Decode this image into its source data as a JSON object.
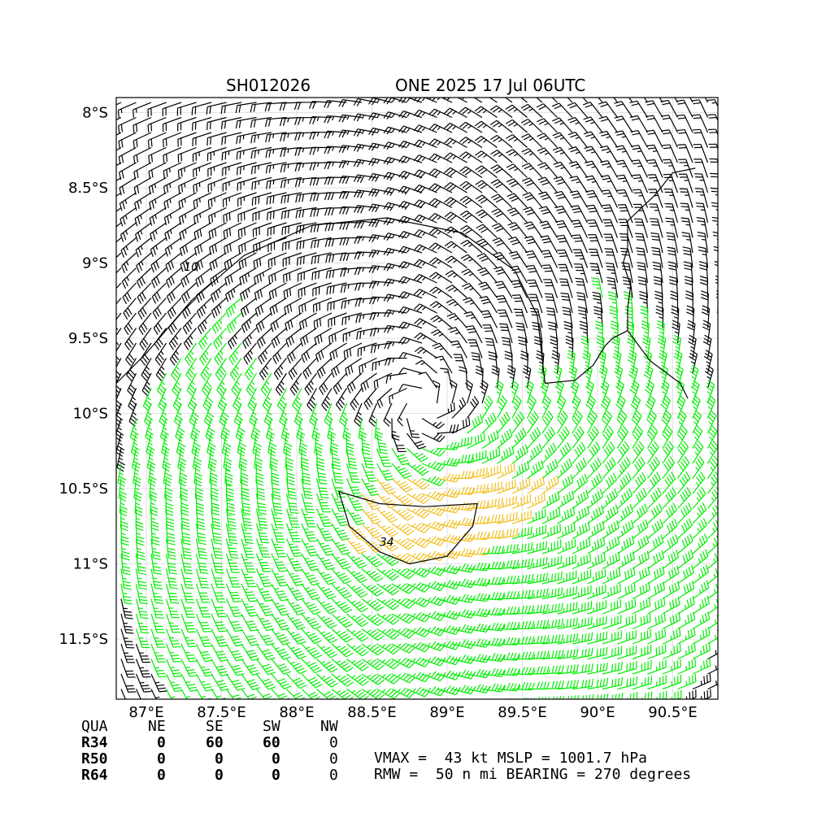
{
  "title": {
    "storm_id": "SH012026",
    "storm_info": "ONE 2025 17 Jul 06UTC"
  },
  "colors": {
    "barb_weak": "#000000",
    "barb_ts": "#00ee00",
    "barb_strong": "#f0c020",
    "coast": "#000000",
    "contour": "#000000"
  },
  "chart_data": {
    "type": "wind barb map",
    "center": {
      "lon": 88.85,
      "lat": -9.95
    },
    "lon_range": [
      86.8,
      90.8
    ],
    "lat_range": [
      -11.9,
      -7.9
    ],
    "x_ticks": [
      "87°E",
      "87.5°E",
      "88°E",
      "88.5°E",
      "89°E",
      "89.5°E",
      "90°E",
      "90.5°E"
    ],
    "x_tick_values": [
      87.0,
      87.5,
      88.0,
      88.5,
      89.0,
      89.5,
      90.0,
      90.5
    ],
    "y_ticks": [
      "8°S",
      "8.5°S",
      "9°S",
      "9.5°S",
      "10°S",
      "10.5°S",
      "11°S",
      "11.5°S"
    ],
    "y_tick_values": [
      -8.0,
      -8.5,
      -9.0,
      -9.5,
      -10.0,
      -10.5,
      -11.0,
      -11.5
    ],
    "grid": true,
    "contours": [
      {
        "label": "34",
        "level": 34
      },
      {
        "label": "10",
        "level": 10
      }
    ],
    "coastline": [
      [
        90.65,
        -8.37
      ],
      [
        90.5,
        -8.4
      ],
      [
        90.38,
        -8.55
      ],
      [
        90.2,
        -8.72
      ],
      [
        90.2,
        -8.9
      ],
      [
        90.17,
        -9.0
      ],
      [
        90.22,
        -9.15
      ],
      [
        90.2,
        -9.3
      ],
      [
        90.2,
        -9.45
      ],
      [
        90.35,
        -9.65
      ],
      [
        90.55,
        -9.8
      ],
      [
        90.6,
        -9.9
      ]
    ],
    "coastline2": [
      [
        89.65,
        -9.8
      ],
      [
        89.85,
        -9.78
      ],
      [
        89.97,
        -9.68
      ],
      [
        90.05,
        -9.55
      ],
      [
        90.1,
        -9.5
      ],
      [
        90.2,
        -9.45
      ]
    ],
    "rmw_nmi": 50,
    "vmax_kt": 43,
    "mslp_hpa": 1001.7
  },
  "table": {
    "header": [
      "QUA",
      "NE",
      "SE",
      "SW",
      "NW"
    ],
    "rows": [
      {
        "label": "R34",
        "values": [
          "0",
          "60",
          "60",
          "0"
        ]
      },
      {
        "label": "R50",
        "values": [
          "0",
          "0",
          "0",
          "0"
        ]
      },
      {
        "label": "R64",
        "values": [
          "0",
          "0",
          "0",
          "0"
        ]
      }
    ]
  },
  "info": {
    "line1": "VMAX =  43 kt MSLP = 1001.7 hPa",
    "line2": "RMW =  50 n mi BEARING = 270 degrees"
  }
}
